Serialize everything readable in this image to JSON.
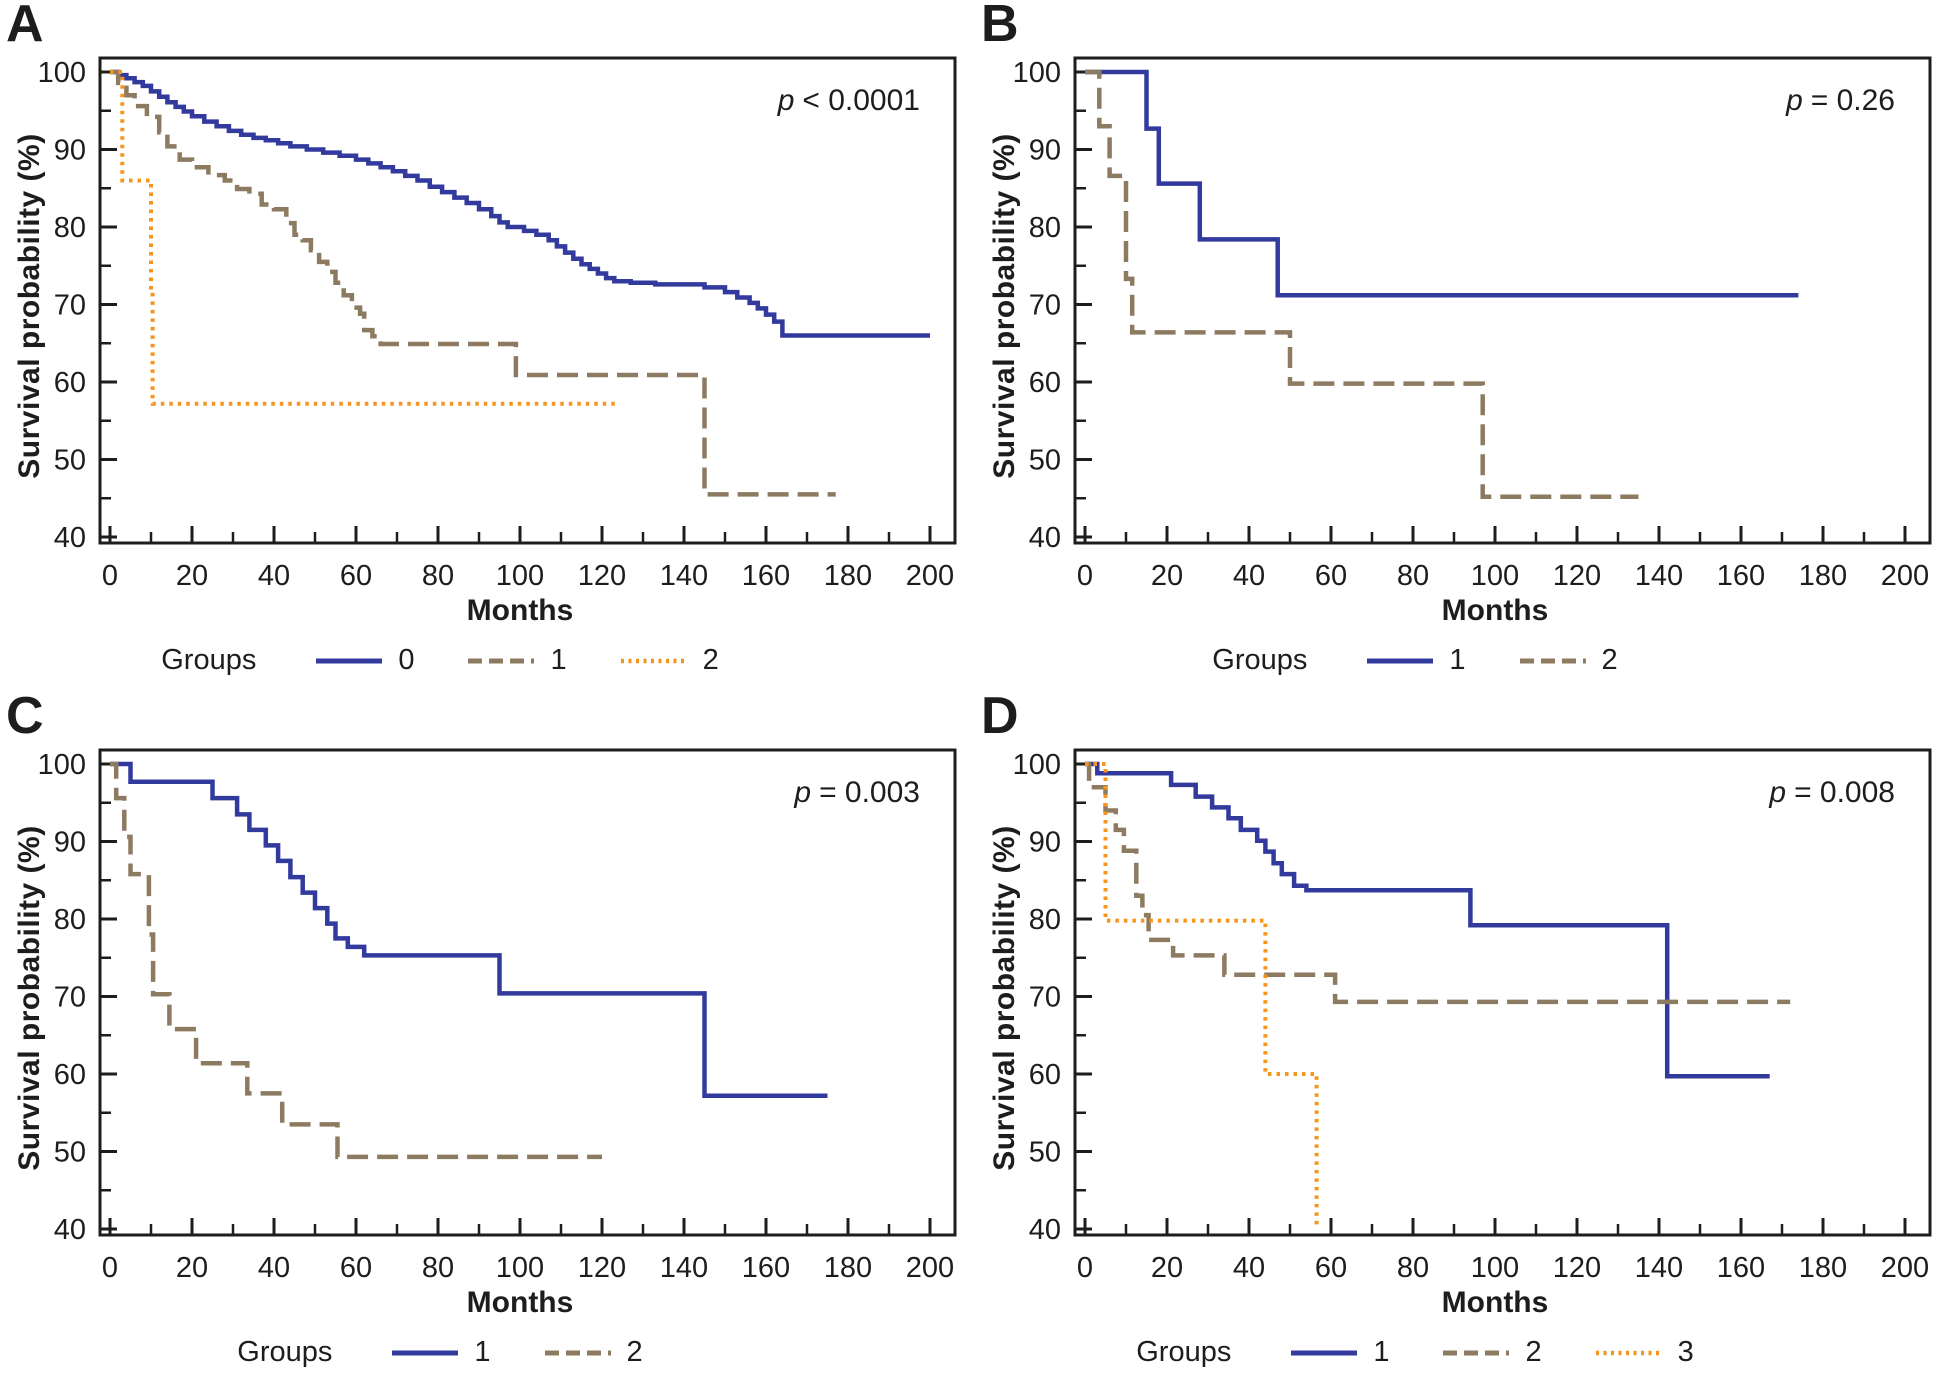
{
  "figure": {
    "background": "#ffffff",
    "text_color": "#1d1d1b",
    "axis_color": "#1d1d1b"
  },
  "colors": {
    "blue": "#323a9e",
    "brown": "#8d7b61",
    "orange": "#f7941e"
  },
  "chart_data": [
    {
      "type": "line",
      "subtype": "kaplan-meier-step",
      "panel_label": "A",
      "p_label": "p",
      "p_text": "< 0.0001",
      "xlabel": "Months",
      "ylabel": "Survival probability (%)",
      "legend_title": "Groups",
      "xlim": [
        0,
        206
      ],
      "ylim": [
        40,
        102
      ],
      "x_ticks": [
        0,
        20,
        40,
        60,
        80,
        100,
        120,
        140,
        160,
        180,
        200
      ],
      "x_minor_ticks": [
        10,
        30,
        50,
        70,
        90,
        110,
        130,
        150,
        170,
        190
      ],
      "y_ticks": [
        100,
        90,
        80,
        70,
        60,
        50,
        40
      ],
      "y_minor_ticks": [
        95,
        85,
        75,
        65,
        55,
        45
      ],
      "grid": false,
      "legend_position": "bottom",
      "series": [
        {
          "name": "0",
          "color_key": "blue",
          "line_style": "solid",
          "step_points": [
            [
              0,
              100
            ],
            [
              2,
              99.6
            ],
            [
              4,
              99.2
            ],
            [
              6,
              98.7
            ],
            [
              8,
              98.2
            ],
            [
              10,
              97.5
            ],
            [
              12,
              96.8
            ],
            [
              14,
              96.1
            ],
            [
              16,
              95.5
            ],
            [
              18,
              94.9
            ],
            [
              20,
              94.3
            ],
            [
              23,
              93.6
            ],
            [
              26,
              93
            ],
            [
              29,
              92.4
            ],
            [
              32,
              91.9
            ],
            [
              35,
              91.5
            ],
            [
              38,
              91.2
            ],
            [
              41,
              90.8
            ],
            [
              44,
              90.4
            ],
            [
              48,
              90
            ],
            [
              52,
              89.6
            ],
            [
              56,
              89.2
            ],
            [
              60,
              88.7
            ],
            [
              63,
              88.2
            ],
            [
              66,
              87.7
            ],
            [
              69,
              87.2
            ],
            [
              72,
              86.6
            ],
            [
              75,
              86
            ],
            [
              78,
              85.2
            ],
            [
              81,
              84.5
            ],
            [
              84,
              83.8
            ],
            [
              87,
              83.1
            ],
            [
              90,
              82.3
            ],
            [
              93,
              81.4
            ],
            [
              95,
              80.6
            ],
            [
              97,
              80
            ],
            [
              101,
              79.5
            ],
            [
              104,
              79
            ],
            [
              107,
              78.3
            ],
            [
              109,
              77.5
            ],
            [
              111,
              76.7
            ],
            [
              113,
              75.9
            ],
            [
              115,
              75.2
            ],
            [
              117,
              74.6
            ],
            [
              119,
              74
            ],
            [
              121,
              73.4
            ],
            [
              123,
              73
            ],
            [
              127,
              72.8
            ],
            [
              133,
              72.6
            ],
            [
              145,
              72.2
            ],
            [
              150,
              71.6
            ],
            [
              153,
              70.9
            ],
            [
              156,
              70.2
            ],
            [
              158,
              69.5
            ],
            [
              160,
              68.7
            ],
            [
              162,
              67.8
            ],
            [
              164,
              66
            ],
            [
              200,
              66
            ]
          ]
        },
        {
          "name": "1",
          "color_key": "brown",
          "line_style": "dashed",
          "step_points": [
            [
              0,
              100
            ],
            [
              2,
              98.6
            ],
            [
              4,
              97
            ],
            [
              6,
              95.6
            ],
            [
              9,
              94.2
            ],
            [
              12,
              92.2
            ],
            [
              14,
              90.4
            ],
            [
              17,
              88.7
            ],
            [
              20,
              87.7
            ],
            [
              24,
              86.7
            ],
            [
              28,
              86
            ],
            [
              31,
              84.9
            ],
            [
              34,
              84.3
            ],
            [
              37,
              82.9
            ],
            [
              40,
              82.3
            ],
            [
              43,
              80.5
            ],
            [
              45,
              79
            ],
            [
              47,
              78.3
            ],
            [
              49,
              77
            ],
            [
              51,
              75.5
            ],
            [
              53,
              74.2
            ],
            [
              55,
              72.8
            ],
            [
              57,
              71.2
            ],
            [
              59,
              69.6
            ],
            [
              61,
              68.8
            ],
            [
              62,
              66.7
            ],
            [
              64,
              65.9
            ],
            [
              66,
              64.9
            ],
            [
              97,
              64.9
            ],
            [
              99,
              60.9
            ],
            [
              143,
              60.9
            ],
            [
              145,
              45.5
            ],
            [
              177,
              45.5
            ]
          ]
        },
        {
          "name": "2",
          "color_key": "orange",
          "line_style": "dotted",
          "step_points": [
            [
              0,
              100
            ],
            [
              3,
              86
            ],
            [
              9.6,
              86
            ],
            [
              10,
              71.5
            ],
            [
              10.4,
              57.2
            ],
            [
              124,
              57.2
            ]
          ]
        }
      ]
    },
    {
      "type": "line",
      "subtype": "kaplan-meier-step",
      "panel_label": "B",
      "p_label": "p",
      "p_text": "= 0.26",
      "xlabel": "Months",
      "ylabel": "Survival probability (%)",
      "legend_title": "Groups",
      "xlim": [
        0,
        206
      ],
      "ylim": [
        40,
        102
      ],
      "x_ticks": [
        0,
        20,
        40,
        60,
        80,
        100,
        120,
        140,
        160,
        180,
        200
      ],
      "x_minor_ticks": [
        10,
        30,
        50,
        70,
        90,
        110,
        130,
        150,
        170,
        190
      ],
      "y_ticks": [
        100,
        90,
        80,
        70,
        60,
        50,
        40
      ],
      "y_minor_ticks": [
        95,
        85,
        75,
        65,
        55,
        45
      ],
      "grid": false,
      "legend_position": "bottom",
      "series": [
        {
          "name": "1",
          "color_key": "blue",
          "line_style": "solid",
          "step_points": [
            [
              0,
              100
            ],
            [
              15,
              92.7
            ],
            [
              18,
              85.6
            ],
            [
              28,
              78.4
            ],
            [
              47,
              71.2
            ],
            [
              174,
              71.2
            ]
          ]
        },
        {
          "name": "2",
          "color_key": "brown",
          "line_style": "dashed",
          "step_points": [
            [
              0,
              100
            ],
            [
              3.5,
              93
            ],
            [
              6,
              86.6
            ],
            [
              10,
              73.3
            ],
            [
              11.5,
              66.4
            ],
            [
              50,
              59.8
            ],
            [
              97,
              45.2
            ],
            [
              135,
              45.2
            ]
          ]
        }
      ]
    },
    {
      "type": "line",
      "subtype": "kaplan-meier-step",
      "panel_label": "C",
      "p_label": "p",
      "p_text": "= 0.003",
      "xlabel": "Months",
      "ylabel": "Survival probability (%)",
      "legend_title": "Groups",
      "xlim": [
        0,
        206
      ],
      "ylim": [
        40,
        102
      ],
      "x_ticks": [
        0,
        20,
        40,
        60,
        80,
        100,
        120,
        140,
        160,
        180,
        200
      ],
      "x_minor_ticks": [
        10,
        30,
        50,
        70,
        90,
        110,
        130,
        150,
        170,
        190
      ],
      "y_ticks": [
        100,
        90,
        80,
        70,
        60,
        50,
        40
      ],
      "y_minor_ticks": [
        95,
        85,
        75,
        65,
        55,
        45
      ],
      "grid": false,
      "legend_position": "bottom",
      "series": [
        {
          "name": "1",
          "color_key": "blue",
          "line_style": "solid",
          "step_points": [
            [
              0,
              100
            ],
            [
              5,
              97.7
            ],
            [
              25,
              95.6
            ],
            [
              31,
              93.5
            ],
            [
              34,
              91.5
            ],
            [
              38,
              89.5
            ],
            [
              41,
              87.5
            ],
            [
              44,
              85.4
            ],
            [
              47,
              83.4
            ],
            [
              50,
              81.4
            ],
            [
              53,
              79.4
            ],
            [
              55,
              77.5
            ],
            [
              58,
              76.4
            ],
            [
              62,
              75.3
            ],
            [
              95,
              70.4
            ],
            [
              145,
              57.2
            ],
            [
              175,
              57.2
            ]
          ]
        },
        {
          "name": "2",
          "color_key": "brown",
          "line_style": "dashed",
          "step_points": [
            [
              0,
              100
            ],
            [
              1.5,
              95.6
            ],
            [
              3.5,
              90.6
            ],
            [
              5,
              85.8
            ],
            [
              9.5,
              78
            ],
            [
              10.5,
              70.3
            ],
            [
              14.5,
              65.8
            ],
            [
              21,
              61.4
            ],
            [
              33.5,
              57.5
            ],
            [
              42,
              53.5
            ],
            [
              55.5,
              49.3
            ],
            [
              120,
              49.3
            ]
          ]
        }
      ]
    },
    {
      "type": "line",
      "subtype": "kaplan-meier-step",
      "panel_label": "D",
      "p_label": "p",
      "p_text": "= 0.008",
      "xlabel": "Months",
      "ylabel": "Survival probability (%)",
      "legend_title": "Groups",
      "xlim": [
        0,
        206
      ],
      "ylim": [
        40,
        102
      ],
      "x_ticks": [
        0,
        20,
        40,
        60,
        80,
        100,
        120,
        140,
        160,
        180,
        200
      ],
      "x_minor_ticks": [
        10,
        30,
        50,
        70,
        90,
        110,
        130,
        150,
        170,
        190
      ],
      "y_ticks": [
        100,
        90,
        80,
        70,
        60,
        50,
        40
      ],
      "y_minor_ticks": [
        95,
        85,
        75,
        65,
        55,
        45
      ],
      "grid": false,
      "legend_position": "bottom",
      "series": [
        {
          "name": "1",
          "color_key": "blue",
          "line_style": "solid",
          "step_points": [
            [
              0,
              100
            ],
            [
              3,
              98.8
            ],
            [
              21,
              97.3
            ],
            [
              27,
              95.8
            ],
            [
              31,
              94.4
            ],
            [
              35,
              93
            ],
            [
              38,
              91.5
            ],
            [
              42,
              90.1
            ],
            [
              44,
              88.7
            ],
            [
              46,
              87.2
            ],
            [
              48,
              85.8
            ],
            [
              51,
              84.3
            ],
            [
              54,
              83.7
            ],
            [
              94,
              79.2
            ],
            [
              142,
              59.7
            ],
            [
              167,
              59.7
            ]
          ]
        },
        {
          "name": "2",
          "color_key": "brown",
          "line_style": "dashed",
          "step_points": [
            [
              0,
              100
            ],
            [
              1,
              97
            ],
            [
              5,
              94
            ],
            [
              7.5,
              91.5
            ],
            [
              9.5,
              88.8
            ],
            [
              12.5,
              83
            ],
            [
              14,
              80.5
            ],
            [
              15.5,
              77.3
            ],
            [
              21.5,
              75.3
            ],
            [
              34,
              72.8
            ],
            [
              61,
              69.3
            ],
            [
              172,
              69.3
            ]
          ]
        },
        {
          "name": "3",
          "color_key": "orange",
          "line_style": "dotted",
          "step_points": [
            [
              0,
              100
            ],
            [
              5,
              79.8
            ],
            [
              44,
              60
            ],
            [
              56.5,
              40.3
            ]
          ]
        }
      ]
    }
  ]
}
